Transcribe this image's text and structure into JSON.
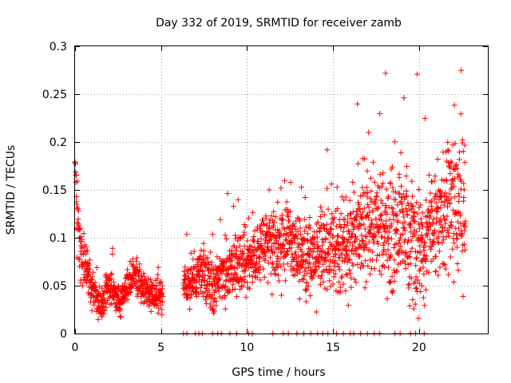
{
  "chart_data": {
    "type": "scatter",
    "title": "Day 332 of 2019, SRMTID for receiver zamb",
    "xlabel": "GPS time / hours",
    "ylabel": "SRMTID / TECUs",
    "xlim": [
      0,
      24
    ],
    "ylim": [
      0,
      0.3
    ],
    "x_ticks": [
      0,
      5,
      10,
      15,
      20
    ],
    "x_tick_labels": [
      "0",
      "5",
      "10",
      "15",
      "20"
    ],
    "y_ticks": [
      0,
      0.05,
      0.1,
      0.15,
      0.2,
      0.25,
      0.3
    ],
    "y_tick_labels": [
      "0",
      "0.05",
      "0.1",
      "0.15",
      "0.2",
      "0.25",
      "0.3"
    ],
    "grid": true,
    "marker": "+",
    "color": "#ff0000",
    "series": [
      {
        "name": "SRMTID",
        "trend": [
          {
            "x": 0.0,
            "y": 0.175
          },
          {
            "x": 0.1,
            "y": 0.12
          },
          {
            "x": 0.3,
            "y": 0.085
          },
          {
            "x": 0.7,
            "y": 0.065
          },
          {
            "x": 1.0,
            "y": 0.05
          },
          {
            "x": 1.5,
            "y": 0.03
          },
          {
            "x": 2.0,
            "y": 0.05
          },
          {
            "x": 2.5,
            "y": 0.035
          },
          {
            "x": 3.0,
            "y": 0.05
          },
          {
            "x": 3.5,
            "y": 0.06
          },
          {
            "x": 4.0,
            "y": 0.045
          },
          {
            "x": 4.5,
            "y": 0.042
          },
          {
            "x": 5.0,
            "y": 0.04
          },
          {
            "x": 6.4,
            "y": 0.05
          },
          {
            "x": 7.0,
            "y": 0.06
          },
          {
            "x": 7.5,
            "y": 0.065
          },
          {
            "x": 8.0,
            "y": 0.05
          },
          {
            "x": 8.5,
            "y": 0.06
          },
          {
            "x": 9.0,
            "y": 0.068
          },
          {
            "x": 10.0,
            "y": 0.08
          },
          {
            "x": 11.0,
            "y": 0.09
          },
          {
            "x": 12.0,
            "y": 0.095
          },
          {
            "x": 13.0,
            "y": 0.085
          },
          {
            "x": 14.0,
            "y": 0.08
          },
          {
            "x": 15.0,
            "y": 0.09
          },
          {
            "x": 16.0,
            "y": 0.1
          },
          {
            "x": 17.0,
            "y": 0.11
          },
          {
            "x": 18.0,
            "y": 0.115
          },
          {
            "x": 19.0,
            "y": 0.11
          },
          {
            "x": 20.0,
            "y": 0.09
          },
          {
            "x": 21.0,
            "y": 0.12
          },
          {
            "x": 22.0,
            "y": 0.14
          },
          {
            "x": 22.7,
            "y": 0.13
          }
        ],
        "spread_by_hour": [
          {
            "x": 0.0,
            "s": 0.025
          },
          {
            "x": 1.0,
            "s": 0.014
          },
          {
            "x": 5.0,
            "s": 0.012
          },
          {
            "x": 6.3,
            "s": 0.015
          },
          {
            "x": 9.0,
            "s": 0.022
          },
          {
            "x": 15.0,
            "s": 0.03
          },
          {
            "x": 17.0,
            "s": 0.04
          },
          {
            "x": 22.7,
            "s": 0.045
          }
        ],
        "gaps": [
          [
            5.1,
            6.3
          ]
        ],
        "x_range": [
          0.0,
          22.7
        ],
        "approx_point_count": 2300,
        "zero_value_times": [
          6.3,
          6.5,
          7.0,
          7.2,
          7.4,
          8.0,
          8.3,
          8.5,
          9.0,
          9.4,
          10.1,
          10.3,
          11.5,
          12.1,
          12.4,
          12.9,
          13.3,
          13.7,
          14.1,
          14.4,
          14.7,
          15.2,
          15.6,
          16.0,
          16.2,
          16.6,
          17.0,
          17.4,
          17.7,
          18.6,
          18.9,
          19.5,
          19.8,
          20.3
        ]
      }
    ]
  }
}
